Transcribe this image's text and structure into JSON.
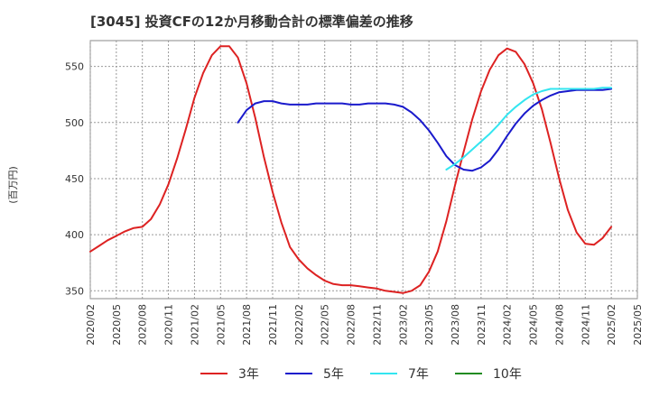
{
  "chart_data": {
    "type": "line",
    "title": "[3045]  投資CFの12か月移動合計の標準偏差の推移",
    "ylabel": "(百万円)",
    "xlabel": "",
    "ylim": [
      343,
      573
    ],
    "y_ticks": [
      350,
      400,
      450,
      500,
      550
    ],
    "x_range": [
      "2020-02",
      "2025-05"
    ],
    "x_ticks": [
      "2020/02",
      "2020/05",
      "2020/08",
      "2020/11",
      "2021/02",
      "2021/05",
      "2021/08",
      "2021/11",
      "2022/02",
      "2022/05",
      "2022/08",
      "2022/11",
      "2023/02",
      "2023/05",
      "2023/08",
      "2023/11",
      "2024/02",
      "2024/05",
      "2024/08",
      "2024/11",
      "2025/02",
      "2025/05"
    ],
    "grid": true,
    "legend_position": "bottom",
    "series": [
      {
        "name": "3年",
        "color": "#dd2222",
        "points": [
          [
            "2020-02",
            385
          ],
          [
            "2020-03",
            390
          ],
          [
            "2020-04",
            395
          ],
          [
            "2020-05",
            399
          ],
          [
            "2020-06",
            403
          ],
          [
            "2020-07",
            406
          ],
          [
            "2020-08",
            407
          ],
          [
            "2020-09",
            414
          ],
          [
            "2020-10",
            427
          ],
          [
            "2020-11",
            445
          ],
          [
            "2020-12",
            468
          ],
          [
            "2021-01",
            494
          ],
          [
            "2021-02",
            522
          ],
          [
            "2021-03",
            544
          ],
          [
            "2021-04",
            560
          ],
          [
            "2021-05",
            568
          ],
          [
            "2021-06",
            568
          ],
          [
            "2021-07",
            558
          ],
          [
            "2021-08",
            535
          ],
          [
            "2021-09",
            504
          ],
          [
            "2021-10",
            469
          ],
          [
            "2021-11",
            438
          ],
          [
            "2021-12",
            411
          ],
          [
            "2022-01",
            389
          ],
          [
            "2022-02",
            378
          ],
          [
            "2022-03",
            370
          ],
          [
            "2022-04",
            364
          ],
          [
            "2022-05",
            359
          ],
          [
            "2022-06",
            356
          ],
          [
            "2022-07",
            355
          ],
          [
            "2022-08",
            355
          ],
          [
            "2022-09",
            354
          ],
          [
            "2022-10",
            353
          ],
          [
            "2022-11",
            352
          ],
          [
            "2022-12",
            350
          ],
          [
            "2023-01",
            349
          ],
          [
            "2023-02",
            348
          ],
          [
            "2023-03",
            350
          ],
          [
            "2023-04",
            355
          ],
          [
            "2023-05",
            367
          ],
          [
            "2023-06",
            385
          ],
          [
            "2023-07",
            412
          ],
          [
            "2023-08",
            444
          ],
          [
            "2023-09",
            474
          ],
          [
            "2023-10",
            503
          ],
          [
            "2023-11",
            528
          ],
          [
            "2023-12",
            547
          ],
          [
            "2024-01",
            560
          ],
          [
            "2024-02",
            566
          ],
          [
            "2024-03",
            563
          ],
          [
            "2024-04",
            552
          ],
          [
            "2024-05",
            535
          ],
          [
            "2024-06",
            512
          ],
          [
            "2024-07",
            482
          ],
          [
            "2024-08",
            450
          ],
          [
            "2024-09",
            422
          ],
          [
            "2024-10",
            402
          ],
          [
            "2024-11",
            392
          ],
          [
            "2024-12",
            391
          ],
          [
            "2025-01",
            397
          ],
          [
            "2025-02",
            407
          ]
        ]
      },
      {
        "name": "5年",
        "color": "#1a1acc",
        "points": [
          [
            "2021-07",
            500
          ],
          [
            "2021-08",
            511
          ],
          [
            "2021-09",
            517
          ],
          [
            "2021-10",
            519
          ],
          [
            "2021-11",
            519
          ],
          [
            "2021-12",
            517
          ],
          [
            "2022-01",
            516
          ],
          [
            "2022-02",
            516
          ],
          [
            "2022-03",
            516
          ],
          [
            "2022-04",
            517
          ],
          [
            "2022-05",
            517
          ],
          [
            "2022-06",
            517
          ],
          [
            "2022-07",
            517
          ],
          [
            "2022-08",
            516
          ],
          [
            "2022-09",
            516
          ],
          [
            "2022-10",
            517
          ],
          [
            "2022-11",
            517
          ],
          [
            "2022-12",
            517
          ],
          [
            "2023-01",
            516
          ],
          [
            "2023-02",
            514
          ],
          [
            "2023-03",
            509
          ],
          [
            "2023-04",
            502
          ],
          [
            "2023-05",
            493
          ],
          [
            "2023-06",
            482
          ],
          [
            "2023-07",
            470
          ],
          [
            "2023-08",
            462
          ],
          [
            "2023-09",
            458
          ],
          [
            "2023-10",
            457
          ],
          [
            "2023-11",
            460
          ],
          [
            "2023-12",
            466
          ],
          [
            "2024-01",
            476
          ],
          [
            "2024-02",
            488
          ],
          [
            "2024-03",
            499
          ],
          [
            "2024-04",
            508
          ],
          [
            "2024-05",
            515
          ],
          [
            "2024-06",
            520
          ],
          [
            "2024-07",
            524
          ],
          [
            "2024-08",
            527
          ],
          [
            "2024-09",
            528
          ],
          [
            "2024-10",
            529
          ],
          [
            "2024-11",
            529
          ],
          [
            "2024-12",
            529
          ],
          [
            "2025-01",
            529
          ],
          [
            "2025-02",
            530
          ]
        ]
      },
      {
        "name": "7年",
        "color": "#33e5f0",
        "points": [
          [
            "2023-07",
            458
          ],
          [
            "2023-08",
            463
          ],
          [
            "2023-09",
            469
          ],
          [
            "2023-10",
            476
          ],
          [
            "2023-11",
            483
          ],
          [
            "2023-12",
            490
          ],
          [
            "2024-01",
            498
          ],
          [
            "2024-02",
            507
          ],
          [
            "2024-03",
            514
          ],
          [
            "2024-04",
            520
          ],
          [
            "2024-05",
            525
          ],
          [
            "2024-06",
            528
          ],
          [
            "2024-07",
            530
          ],
          [
            "2024-08",
            530
          ],
          [
            "2024-09",
            530
          ],
          [
            "2024-10",
            530
          ],
          [
            "2024-11",
            530
          ],
          [
            "2024-12",
            530
          ],
          [
            "2025-01",
            531
          ],
          [
            "2025-02",
            531
          ]
        ]
      },
      {
        "name": "10年",
        "color": "#228b22",
        "points": []
      }
    ]
  }
}
